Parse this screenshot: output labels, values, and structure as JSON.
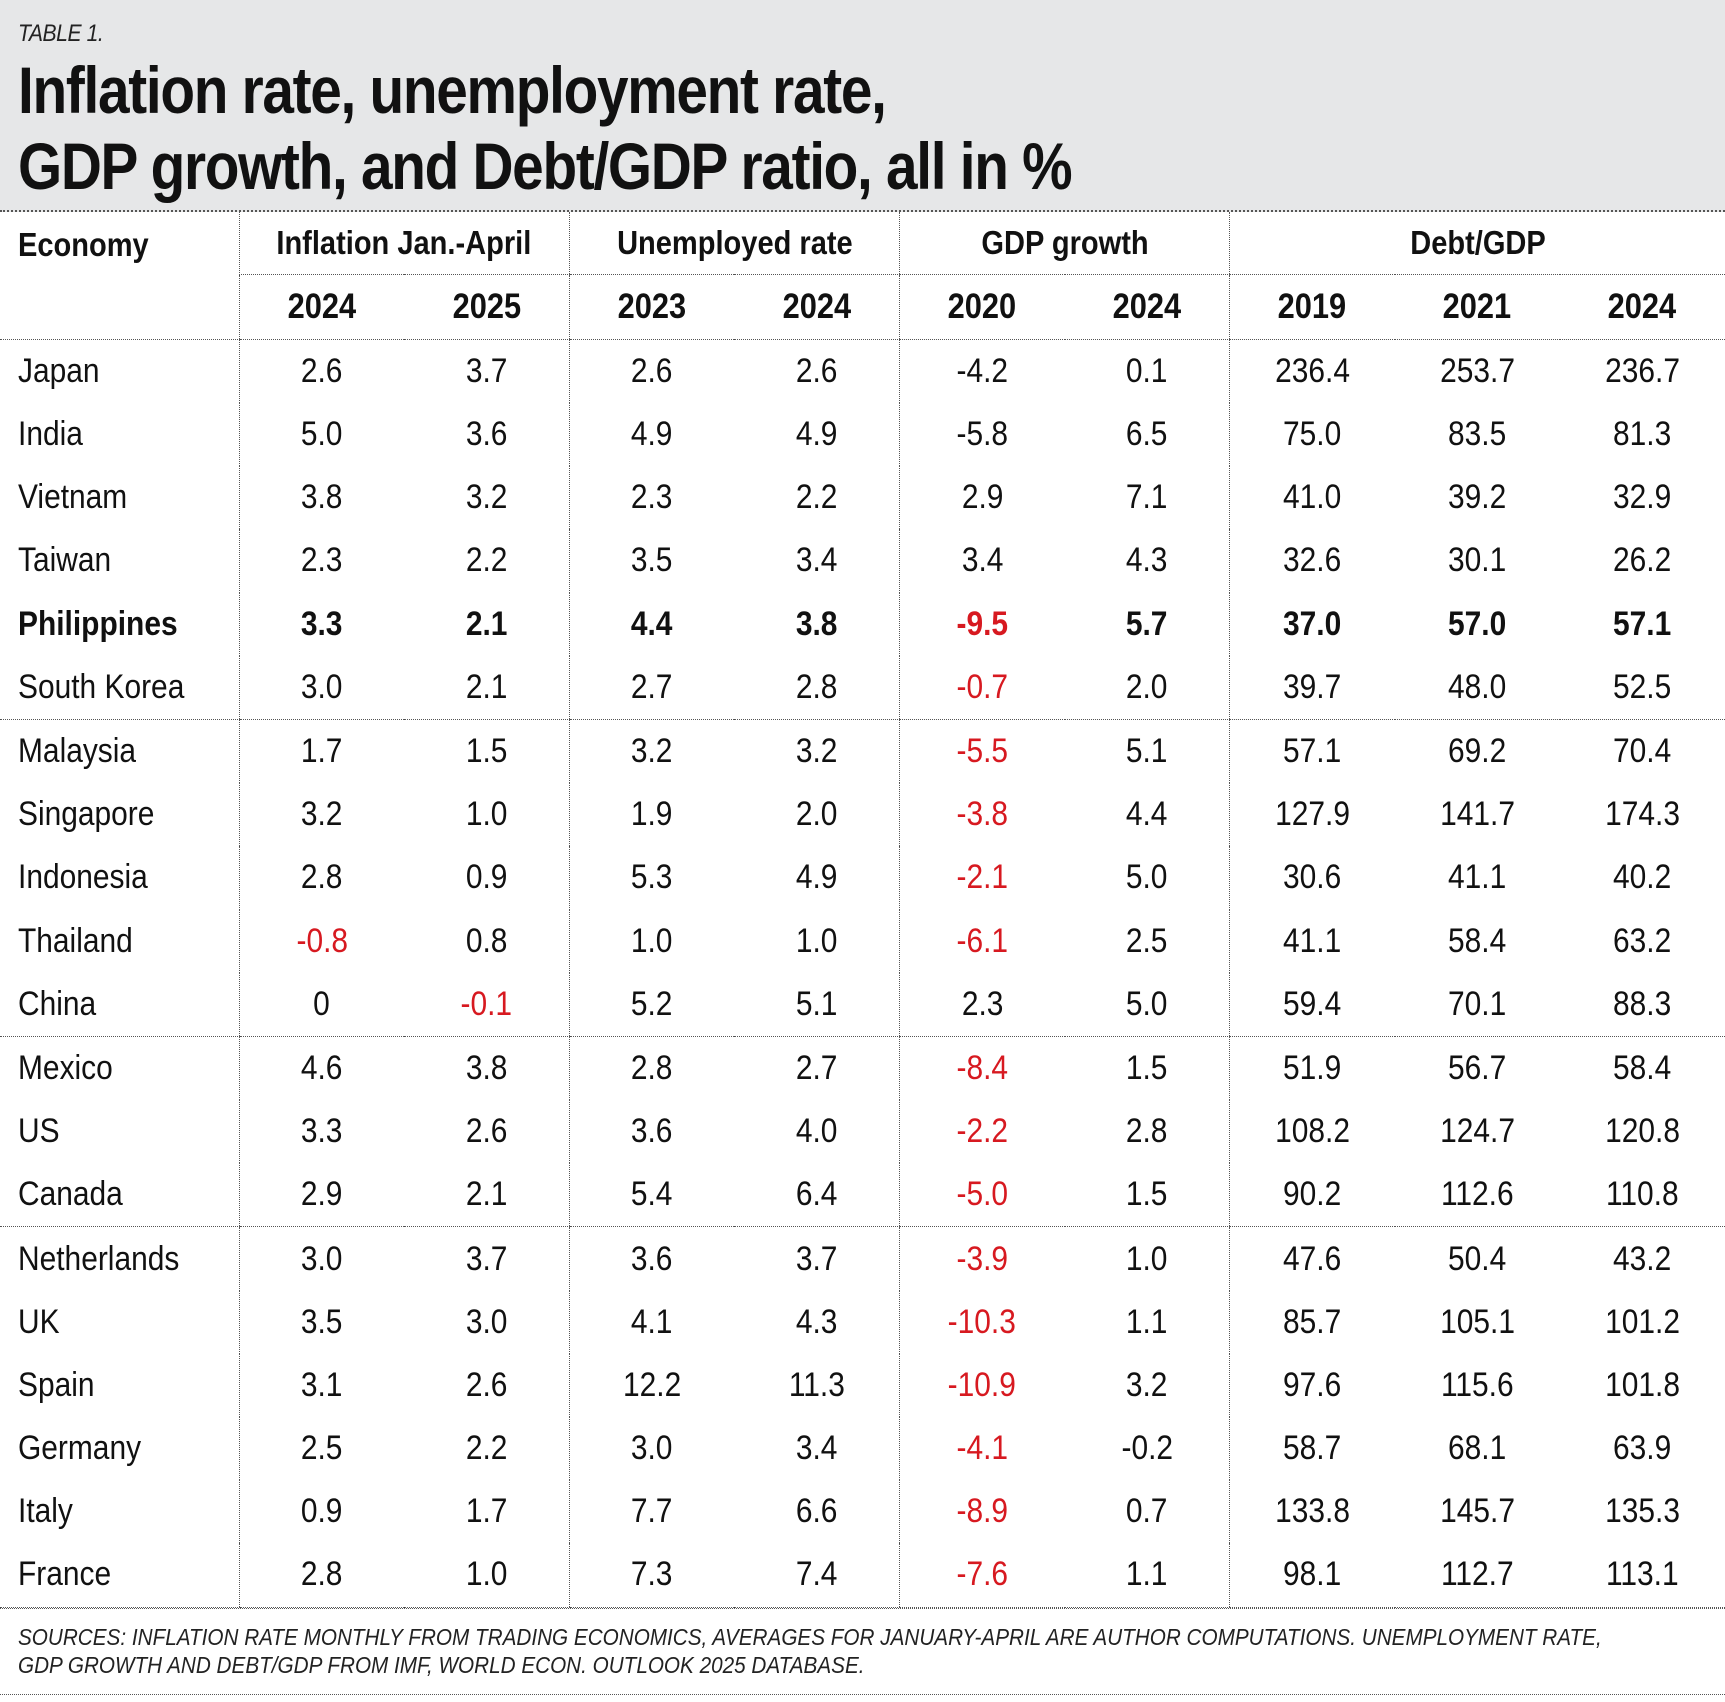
{
  "table_label": "TABLE 1.",
  "title_line1": "Inflation rate, unemployment rate,",
  "title_line2": "GDP growth, and Debt/GDP ratio, all in %",
  "columns": {
    "economy": "Economy",
    "groups": [
      "Inflation Jan.-April",
      "Unemployed rate",
      "GDP growth",
      "Debt/GDP"
    ],
    "years": [
      "2024",
      "2025",
      "2023",
      "2024",
      "2020",
      "2024",
      "2019",
      "2021",
      "2024"
    ]
  },
  "rows": [
    {
      "economy": "Japan",
      "values": [
        "2.6",
        "3.7",
        "2.6",
        "2.6",
        "-4.2",
        "0.1",
        "236.4",
        "253.7",
        "236.7"
      ],
      "neg": [],
      "bold": false
    },
    {
      "economy": "India",
      "values": [
        "5.0",
        "3.6",
        "4.9",
        "4.9",
        "-5.8",
        "6.5",
        "75.0",
        "83.5",
        "81.3"
      ],
      "neg": [],
      "bold": false
    },
    {
      "economy": "Vietnam",
      "values": [
        "3.8",
        "3.2",
        "2.3",
        "2.2",
        "2.9",
        "7.1",
        "41.0",
        "39.2",
        "32.9"
      ],
      "neg": [],
      "bold": false
    },
    {
      "economy": "Taiwan",
      "values": [
        "2.3",
        "2.2",
        "3.5",
        "3.4",
        "3.4",
        "4.3",
        "32.6",
        "30.1",
        "26.2"
      ],
      "neg": [],
      "bold": false
    },
    {
      "economy": "Philippines",
      "values": [
        "3.3",
        "2.1",
        "4.4",
        "3.8",
        "-9.5",
        "5.7",
        "37.0",
        "57.0",
        "57.1"
      ],
      "neg": [
        4
      ],
      "bold": true
    },
    {
      "economy": "South Korea",
      "values": [
        "3.0",
        "2.1",
        "2.7",
        "2.8",
        "-0.7",
        "2.0",
        "39.7",
        "48.0",
        "52.5"
      ],
      "neg": [
        4
      ],
      "bold": false,
      "group_end": true
    },
    {
      "economy": "Malaysia",
      "values": [
        "1.7",
        "1.5",
        "3.2",
        "3.2",
        "-5.5",
        "5.1",
        "57.1",
        "69.2",
        "70.4"
      ],
      "neg": [
        4
      ],
      "bold": false
    },
    {
      "economy": "Singapore",
      "values": [
        "3.2",
        "1.0",
        "1.9",
        "2.0",
        "-3.8",
        "4.4",
        "127.9",
        "141.7",
        "174.3"
      ],
      "neg": [
        4
      ],
      "bold": false
    },
    {
      "economy": "Indonesia",
      "values": [
        "2.8",
        "0.9",
        "5.3",
        "4.9",
        "-2.1",
        "5.0",
        "30.6",
        "41.1",
        "40.2"
      ],
      "neg": [
        4
      ],
      "bold": false
    },
    {
      "economy": "Thailand",
      "values": [
        "-0.8",
        "0.8",
        "1.0",
        "1.0",
        "-6.1",
        "2.5",
        "41.1",
        "58.4",
        "63.2"
      ],
      "neg": [
        0,
        4
      ],
      "bold": false
    },
    {
      "economy": "China",
      "values": [
        "0",
        "-0.1",
        "5.2",
        "5.1",
        "2.3",
        "5.0",
        "59.4",
        "70.1",
        "88.3"
      ],
      "neg": [
        1
      ],
      "bold": false,
      "group_end": true
    },
    {
      "economy": "Mexico",
      "values": [
        "4.6",
        "3.8",
        "2.8",
        "2.7",
        "-8.4",
        "1.5",
        "51.9",
        "56.7",
        "58.4"
      ],
      "neg": [
        4
      ],
      "bold": false
    },
    {
      "economy": "US",
      "values": [
        "3.3",
        "2.6",
        "3.6",
        "4.0",
        "-2.2",
        "2.8",
        "108.2",
        "124.7",
        "120.8"
      ],
      "neg": [
        4
      ],
      "bold": false
    },
    {
      "economy": "Canada",
      "values": [
        "2.9",
        "2.1",
        "5.4",
        "6.4",
        "-5.0",
        "1.5",
        "90.2",
        "112.6",
        "110.8"
      ],
      "neg": [
        4
      ],
      "bold": false,
      "group_end": true
    },
    {
      "economy": "Netherlands",
      "values": [
        "3.0",
        "3.7",
        "3.6",
        "3.7",
        "-3.9",
        "1.0",
        "47.6",
        "50.4",
        "43.2"
      ],
      "neg": [
        4
      ],
      "bold": false
    },
    {
      "economy": "UK",
      "values": [
        "3.5",
        "3.0",
        "4.1",
        "4.3",
        "-10.3",
        "1.1",
        "85.7",
        "105.1",
        "101.2"
      ],
      "neg": [
        4
      ],
      "bold": false
    },
    {
      "economy": "Spain",
      "values": [
        "3.1",
        "2.6",
        "12.2",
        "11.3",
        "-10.9",
        "3.2",
        "97.6",
        "115.6",
        "101.8"
      ],
      "neg": [
        4
      ],
      "bold": false
    },
    {
      "economy": "Germany",
      "values": [
        "2.5",
        "2.2",
        "3.0",
        "3.4",
        "-4.1",
        "-0.2",
        "58.7",
        "68.1",
        "63.9"
      ],
      "neg": [
        4
      ],
      "bold": false
    },
    {
      "economy": "Italy",
      "values": [
        "0.9",
        "1.7",
        "7.7",
        "6.6",
        "-8.9",
        "0.7",
        "133.8",
        "145.7",
        "135.3"
      ],
      "neg": [
        4
      ],
      "bold": false
    },
    {
      "economy": "France",
      "values": [
        "2.8",
        "1.0",
        "7.3",
        "7.4",
        "-7.6",
        "1.1",
        "98.1",
        "112.7",
        "113.1"
      ],
      "neg": [
        4
      ],
      "bold": false,
      "group_end": true
    }
  ],
  "colors": {
    "negative": "#d71920",
    "header_bg": "#e6e7e8"
  },
  "sources_line1": "SOURCES: INFLATION RATE MONTHLY FROM TRADING ECONOMICS, AVERAGES FOR JANUARY-APRIL ARE AUTHOR COMPUTATIONS. UNEMPLOYMENT RATE,",
  "sources_line2": "GDP GROWTH AND DEBT/GDP FROM IMF, WORLD ECON. OUTLOOK 2025 DATABASE."
}
